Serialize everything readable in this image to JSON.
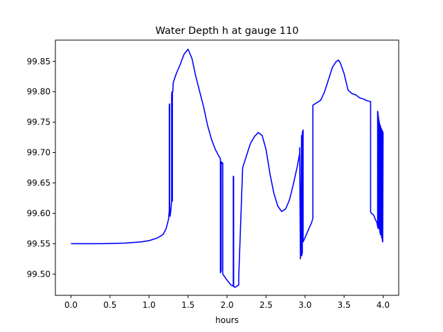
{
  "chart_data": {
    "type": "line",
    "title": "Water Depth h at gauge 110",
    "xlabel": "hours",
    "ylabel": "",
    "xlim": [
      -0.2,
      4.2
    ],
    "ylim": [
      99.465,
      99.885
    ],
    "xticks": [
      0.0,
      0.5,
      1.0,
      1.5,
      2.0,
      2.5,
      3.0,
      3.5,
      4.0
    ],
    "xtick_labels": [
      "0.0",
      "0.5",
      "1.0",
      "1.5",
      "2.0",
      "2.5",
      "3.0",
      "3.5",
      "4.0"
    ],
    "yticks": [
      99.5,
      99.55,
      99.6,
      99.65,
      99.7,
      99.75,
      99.8,
      99.85
    ],
    "ytick_labels": [
      "99.50",
      "99.55",
      "99.60",
      "99.65",
      "99.70",
      "99.75",
      "99.80",
      "99.85"
    ],
    "grid": false,
    "legend": "none",
    "series": [
      {
        "color": "#0000ff",
        "x": [
          0.0,
          0.4,
          0.7,
          0.9,
          1.0,
          1.1,
          1.18,
          1.22,
          1.25,
          1.26,
          1.26,
          1.265,
          1.265,
          1.27,
          1.28,
          1.29,
          1.29,
          1.295,
          1.295,
          1.3,
          1.3,
          1.305,
          1.305,
          1.31,
          1.35,
          1.4,
          1.45,
          1.5,
          1.55,
          1.6,
          1.7,
          1.75,
          1.8,
          1.85,
          1.9,
          1.915,
          1.915,
          1.925,
          1.925,
          1.935,
          1.935,
          1.945,
          1.945,
          2.0,
          2.05,
          2.08,
          2.08,
          2.085,
          2.085,
          2.1,
          2.15,
          2.15,
          2.2,
          2.25,
          2.3,
          2.35,
          2.4,
          2.45,
          2.5,
          2.55,
          2.6,
          2.65,
          2.7,
          2.75,
          2.8,
          2.85,
          2.9,
          2.93,
          2.93,
          2.94,
          2.94,
          2.955,
          2.955,
          2.965,
          2.965,
          2.975,
          2.975,
          3.0,
          3.05,
          3.085,
          3.1,
          3.1,
          3.15,
          3.2,
          3.25,
          3.3,
          3.35,
          3.4,
          3.43,
          3.45,
          3.5,
          3.55,
          3.6,
          3.65,
          3.7,
          3.75,
          3.8,
          3.84,
          3.84,
          3.85,
          3.88,
          3.9,
          3.92,
          3.93,
          3.93,
          3.935,
          3.935,
          3.94,
          3.94,
          3.945,
          3.945,
          3.95,
          3.95,
          3.955,
          3.955,
          3.96,
          3.96,
          3.965,
          3.965,
          3.97,
          3.97,
          3.975,
          3.975,
          3.98,
          3.98,
          3.985,
          3.985,
          3.99,
          3.99,
          3.995,
          3.995,
          4.0
        ],
        "y": [
          99.55,
          99.55,
          99.551,
          99.553,
          99.555,
          99.559,
          99.565,
          99.575,
          99.59,
          99.605,
          99.778,
          99.78,
          99.61,
          99.595,
          99.605,
          99.62,
          99.795,
          99.8,
          99.625,
          99.62,
          99.8,
          99.801,
          99.8,
          99.815,
          99.83,
          99.845,
          99.862,
          99.87,
          99.855,
          99.825,
          99.775,
          99.745,
          99.722,
          99.705,
          99.693,
          99.69,
          99.502,
          99.505,
          99.685,
          99.683,
          99.682,
          99.683,
          99.5,
          99.49,
          99.482,
          99.48,
          99.661,
          99.66,
          99.48,
          99.478,
          99.482,
          99.495,
          99.675,
          99.695,
          99.715,
          99.726,
          99.733,
          99.728,
          99.705,
          99.665,
          99.633,
          99.612,
          99.603,
          99.607,
          99.622,
          99.648,
          99.677,
          99.698,
          99.708,
          99.525,
          99.535,
          99.728,
          99.53,
          99.535,
          99.733,
          99.737,
          99.553,
          99.56,
          99.575,
          99.585,
          99.592,
          99.778,
          99.782,
          99.786,
          99.8,
          99.82,
          99.84,
          99.85,
          99.852,
          99.848,
          99.83,
          99.803,
          99.797,
          99.795,
          99.79,
          99.788,
          99.785,
          99.784,
          99.602,
          99.6,
          99.597,
          99.59,
          99.585,
          99.578,
          99.768,
          99.765,
          99.575,
          99.76,
          99.578,
          99.755,
          99.58,
          99.752,
          99.575,
          99.748,
          99.572,
          99.745,
          99.568,
          99.745,
          99.565,
          99.742,
          99.565,
          99.74,
          99.565,
          99.738,
          99.56,
          99.738,
          99.56,
          99.735,
          99.555,
          99.735,
          99.553,
          99.733
        ]
      }
    ]
  }
}
